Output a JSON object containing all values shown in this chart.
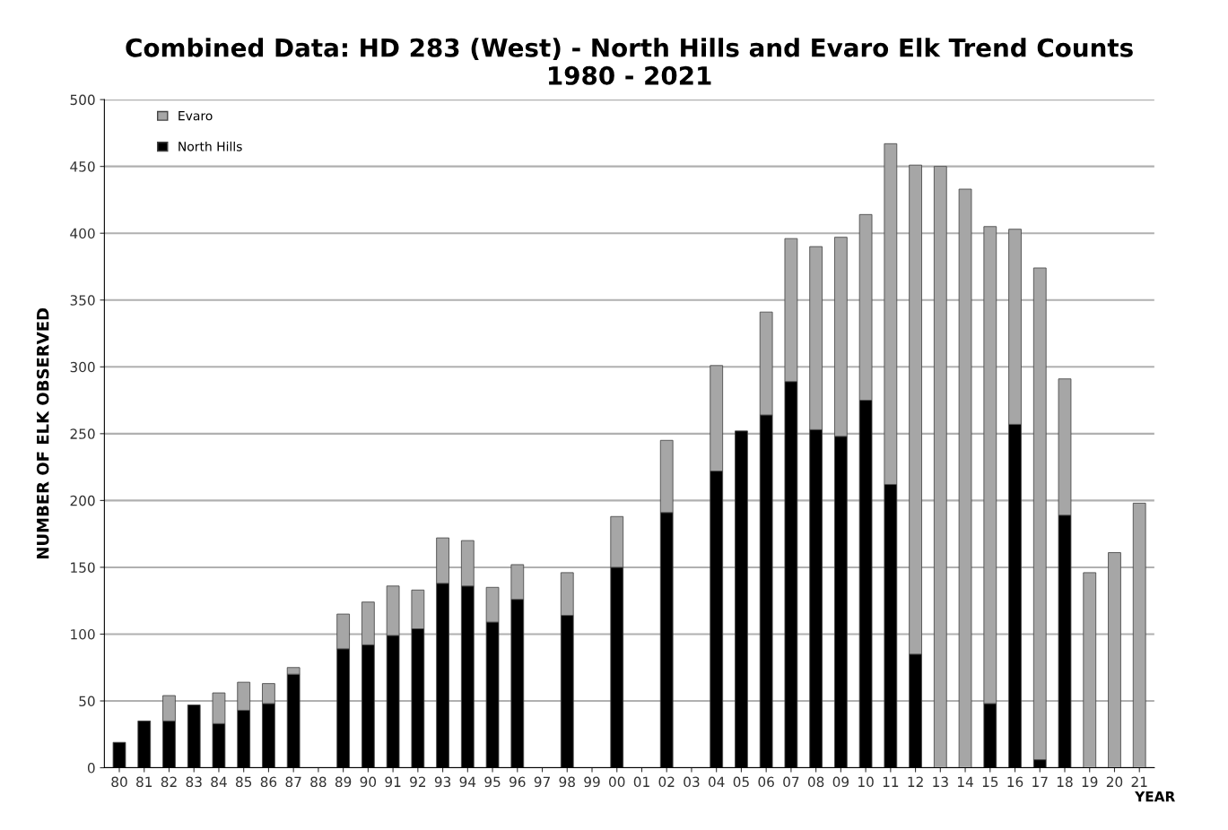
{
  "chart_data": {
    "type": "bar",
    "title": "Combined Data: HD 283 (West) - North Hills and Evaro Elk Trend Counts\n1980 - 2021",
    "xlabel": "YEAR",
    "ylabel": "NUMBER OF ELK OBSERVED",
    "categories": [
      "80",
      "81",
      "82",
      "83",
      "84",
      "85",
      "86",
      "87",
      "88",
      "89",
      "90",
      "91",
      "92",
      "93",
      "94",
      "95",
      "96",
      "97",
      "98",
      "99",
      "00",
      "01",
      "02",
      "03",
      "04",
      "05",
      "06",
      "07",
      "08",
      "09",
      "10",
      "11",
      "12",
      "13",
      "14",
      "15",
      "16",
      "17",
      "18",
      "19",
      "20",
      "21"
    ],
    "stacked": true,
    "series": [
      {
        "name": "North Hills",
        "color": "#000000",
        "values": [
          19,
          35,
          35,
          47,
          33,
          43,
          48,
          70,
          null,
          89,
          92,
          99,
          104,
          138,
          136,
          109,
          126,
          null,
          114,
          null,
          150,
          null,
          191,
          null,
          222,
          252,
          264,
          289,
          253,
          248,
          275,
          212,
          85,
          0,
          0,
          48,
          257,
          6,
          189,
          0,
          0,
          0
        ]
      },
      {
        "name": "Evaro",
        "color": "#a6a6a6",
        "values": [
          0,
          0,
          19,
          0,
          23,
          21,
          15,
          5,
          null,
          26,
          32,
          37,
          29,
          34,
          34,
          26,
          26,
          null,
          32,
          null,
          38,
          null,
          54,
          null,
          79,
          0,
          77,
          107,
          137,
          149,
          139,
          255,
          366,
          450,
          433,
          357,
          146,
          368,
          102,
          146,
          161,
          198
        ]
      }
    ],
    "ylim": [
      0,
      500
    ],
    "yticks": [
      0,
      50,
      100,
      150,
      200,
      250,
      300,
      350,
      400,
      450,
      500
    ],
    "grid": "y",
    "legend": "top left"
  }
}
